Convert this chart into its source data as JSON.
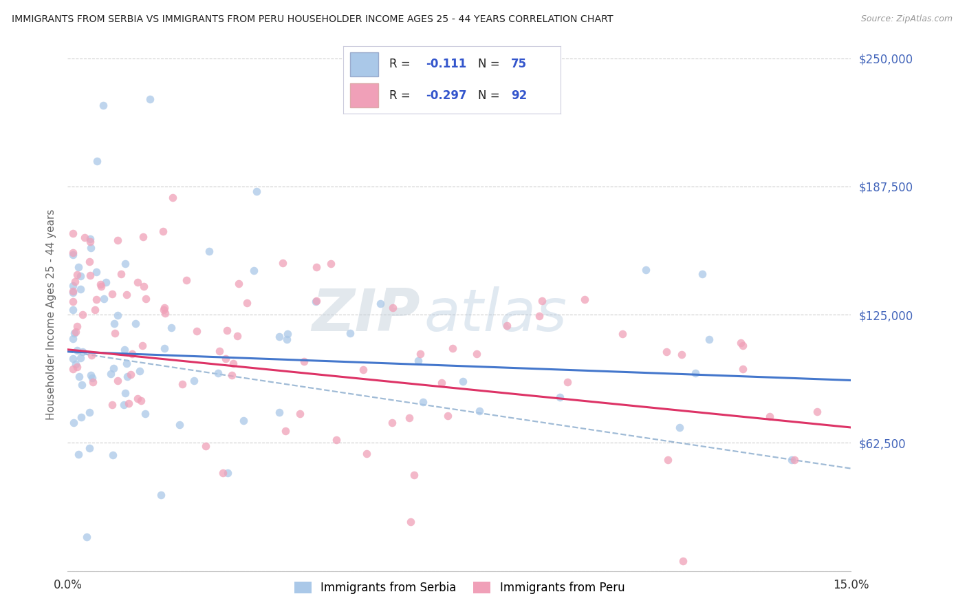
{
  "title": "IMMIGRANTS FROM SERBIA VS IMMIGRANTS FROM PERU HOUSEHOLDER INCOME AGES 25 - 44 YEARS CORRELATION CHART",
  "source": "Source: ZipAtlas.com",
  "ylabel": "Householder Income Ages 25 - 44 years",
  "xlim": [
    0.0,
    0.15
  ],
  "ylim": [
    0,
    250000
  ],
  "yticks": [
    0,
    62500,
    125000,
    187500,
    250000
  ],
  "serbia_color": "#aac8e8",
  "peru_color": "#f0a0b8",
  "serbia_line_color": "#4477cc",
  "peru_line_color": "#dd3366",
  "dashed_line_color": "#88aacc",
  "serbia_label": "Immigrants from Serbia",
  "peru_label": "Immigrants from Peru",
  "legend_r_color": "#3355cc",
  "watermark_zip": "ZIP",
  "watermark_atlas": "atlas",
  "background_color": "#ffffff",
  "grid_color": "#cccccc",
  "axis_label_color": "#4466bb",
  "title_color": "#222222",
  "serbia_R": -0.111,
  "serbia_N": 75,
  "peru_R": -0.297,
  "peru_N": 92,
  "trend_serbia_y0": 107000,
  "trend_serbia_y1": 93000,
  "trend_peru_y0": 108000,
  "trend_peru_y1": 70000,
  "trend_dashed_y0": 107000,
  "trend_dashed_y1": 50000
}
